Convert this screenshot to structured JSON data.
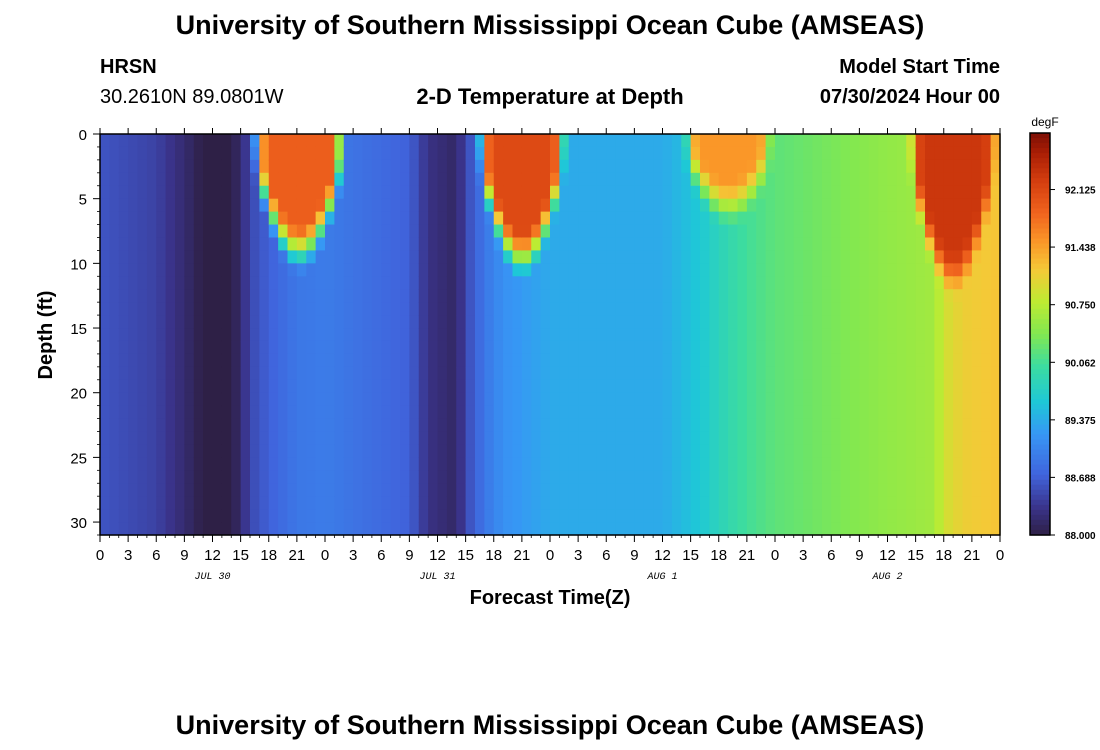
{
  "page": {
    "title_top": "University of Southern Mississippi Ocean Cube (AMSEAS)",
    "title_bottom": "University of Southern Mississippi Ocean Cube (AMSEAS)",
    "station_name": "HRSN",
    "station_coords": "30.2610N  89.0801W",
    "chart_title": "2-D Temperature at Depth",
    "model_start_label": "Model Start Time",
    "model_start_value": "07/30/2024 Hour 00"
  },
  "chart_data": {
    "type": "heatmap",
    "title": "2-D Temperature at Depth",
    "xlabel": "Forecast Time(Z)",
    "ylabel": "Depth (ft)",
    "x_tick_labels": [
      "0",
      "3",
      "6",
      "9",
      "12",
      "15",
      "18",
      "21",
      "0",
      "3",
      "6",
      "9",
      "12",
      "15",
      "18",
      "21",
      "0",
      "3",
      "6",
      "9",
      "12",
      "15",
      "18",
      "21",
      "0",
      "3",
      "6",
      "9",
      "12",
      "15",
      "18",
      "21",
      "0"
    ],
    "x_range_hours": [
      0,
      96
    ],
    "date_labels": [
      {
        "label": "JUL 30",
        "hour": 12
      },
      {
        "label": "JUL 31",
        "hour": 36
      },
      {
        "label": "AUG 1",
        "hour": 60
      },
      {
        "label": "AUG 2",
        "hour": 84
      }
    ],
    "y_tick_labels": [
      "0",
      "5",
      "10",
      "15",
      "20",
      "25",
      "30"
    ],
    "y_range_ft": [
      0,
      31
    ],
    "colorbar": {
      "unit": "degF",
      "min": 88.0,
      "max": 92.8,
      "tick_labels": [
        "92.125",
        "91.438",
        "90.750",
        "90.062",
        "89.375",
        "88.688",
        "88.000"
      ],
      "tick_values": [
        92.125,
        91.438,
        90.75,
        90.062,
        89.375,
        88.688,
        88.0
      ]
    },
    "bottom_temperature_profile": {
      "hours": [
        0,
        6,
        9,
        11,
        14,
        15,
        16,
        18,
        21,
        24,
        33,
        35,
        38,
        39,
        41,
        43,
        48,
        60,
        64,
        67,
        69,
        70,
        72,
        78,
        84,
        89,
        90,
        92,
        96
      ],
      "temps": [
        88.6,
        88.45,
        88.2,
        88.0,
        88.0,
        88.2,
        88.5,
        88.7,
        88.9,
        88.95,
        88.7,
        88.3,
        88.15,
        88.5,
        88.9,
        89.15,
        89.35,
        89.35,
        89.6,
        89.9,
        90.05,
        90.1,
        90.2,
        90.35,
        90.5,
        90.6,
        90.9,
        91.1,
        91.2
      ]
    },
    "warm_surface_lenses": [
      {
        "start_hour": 16.0,
        "end_hour": 26.5,
        "peak_temp": 91.9,
        "max_depth_ft": 9.0
      },
      {
        "start_hour": 40.0,
        "end_hour": 50.0,
        "peak_temp": 92.1,
        "max_depth_ft": 9.5
      },
      {
        "start_hour": 62.0,
        "end_hour": 72.0,
        "peak_temp": 91.5,
        "max_depth_ft": 5.5
      },
      {
        "start_hour": 86.0,
        "end_hour": 96.0,
        "peak_temp": 92.3,
        "max_depth_ft": 11.0
      }
    ]
  }
}
